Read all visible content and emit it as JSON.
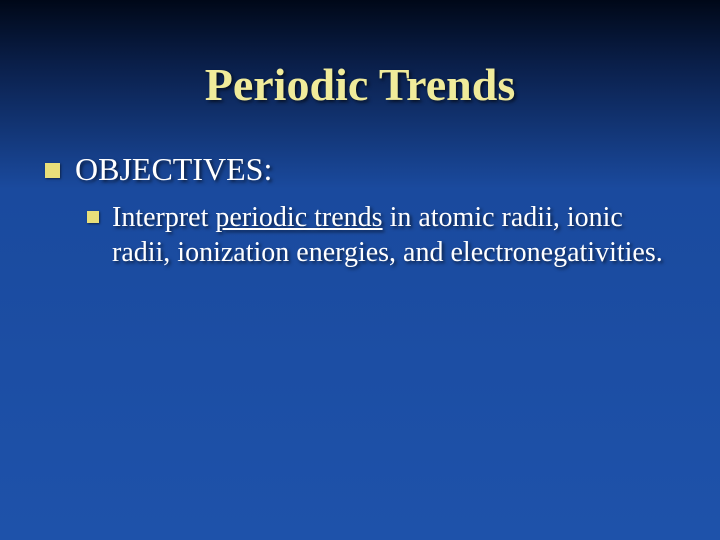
{
  "slide": {
    "title": "Periodic Trends",
    "title_color": "#f0eb9a",
    "title_fontsize": 46,
    "background_gradient_top": "#000818",
    "background_gradient_mid": "#1a4a9e",
    "background_gradient_bottom": "#1e52aa",
    "bullet_color": "#e8df7a",
    "text_color": "#ffffff",
    "content": {
      "level1": {
        "text": "OBJECTIVES:",
        "fontsize": 32
      },
      "level2": {
        "text_before": "Interpret ",
        "text_underlined": "periodic trends",
        "text_after": " in atomic radii, ionic radii, ionization energies, and electronegativities.",
        "fontsize": 28
      }
    }
  }
}
